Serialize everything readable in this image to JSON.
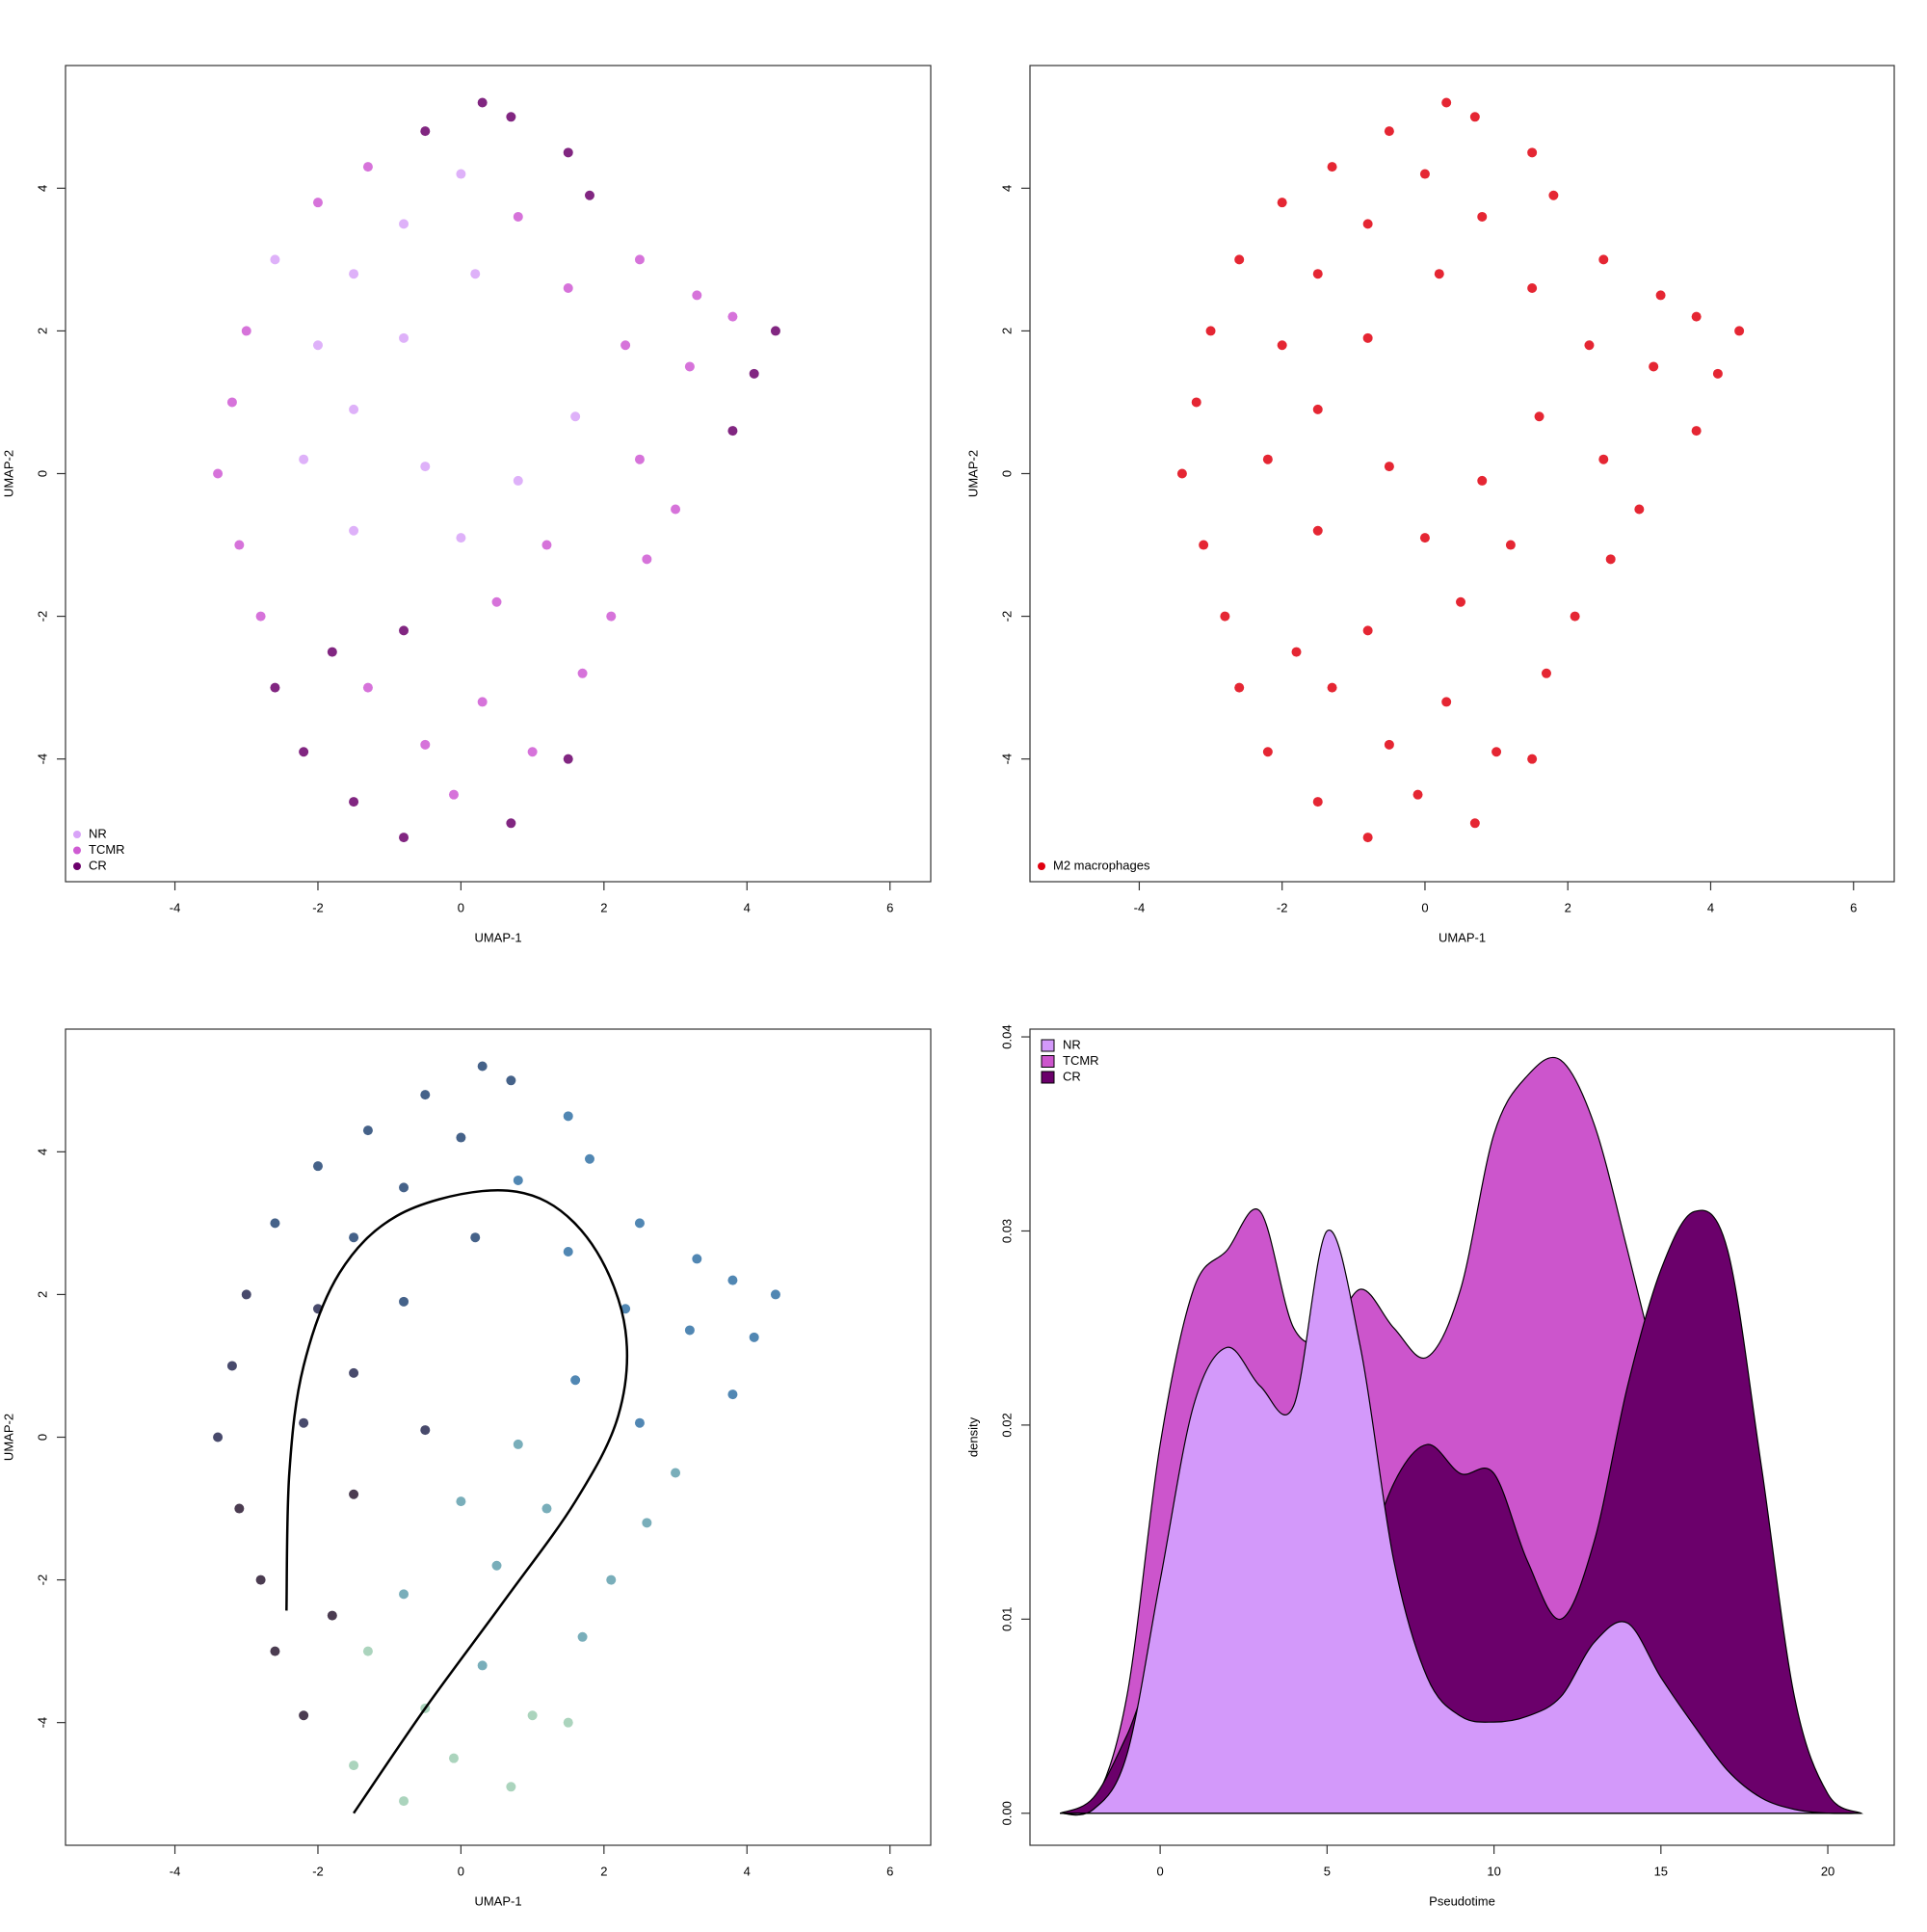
{
  "chart_data": [
    {
      "type": "scatter",
      "xlabel": "UMAP-1",
      "ylabel": "UMAP-2",
      "xlim": [
        -5.53,
        6.57
      ],
      "ylim": [
        -5.72,
        5.72
      ],
      "xticks": [
        -4,
        -2,
        0,
        2,
        4,
        6
      ],
      "yticks": [
        -4,
        -2,
        0,
        2,
        4
      ],
      "legend": "bottomleft",
      "series": [
        {
          "name": "NR",
          "color": "#d8a3f8",
          "x": [
            -1.5,
            -0.8,
            -0.5,
            -1.5,
            -2.0,
            0.0,
            -0.8,
            0.2,
            -2.2,
            -1.5,
            0.0,
            -2.6,
            0.8,
            1.6
          ],
          "y": [
            2.8,
            1.9,
            0.1,
            0.9,
            1.8,
            4.2,
            3.5,
            2.8,
            0.2,
            -0.8,
            -0.9,
            3.0,
            -0.1,
            0.8
          ]
        },
        {
          "name": "TCMR",
          "color": "#cf5bd3",
          "x": [
            -3.4,
            -3.2,
            -3.0,
            -2.0,
            -1.3,
            0.8,
            1.5,
            2.3,
            3.2,
            3.3,
            2.5,
            3.0,
            1.2,
            2.6,
            -3.1,
            -2.8,
            0.5,
            2.1,
            -1.3,
            0.3,
            1.7,
            -0.5,
            1.0,
            -0.1,
            2.5,
            3.8
          ],
          "y": [
            0.0,
            1.0,
            2.0,
            3.8,
            4.3,
            3.6,
            2.6,
            1.8,
            1.5,
            2.5,
            0.2,
            -0.5,
            -1.0,
            -1.2,
            -1.0,
            -2.0,
            -1.8,
            -2.0,
            -3.0,
            -3.2,
            -2.8,
            -3.8,
            -3.9,
            -4.5,
            3.0,
            2.2
          ]
        },
        {
          "name": "CR",
          "color": "#6b006b",
          "x": [
            0.3,
            0.7,
            -0.5,
            1.5,
            1.8,
            4.4,
            4.1,
            3.8,
            -0.8,
            -1.8,
            -2.6,
            -2.2,
            1.5,
            -1.5,
            -0.8,
            0.7
          ],
          "y": [
            5.2,
            5.0,
            4.8,
            4.5,
            3.9,
            2.0,
            1.4,
            0.6,
            -2.2,
            -2.5,
            -3.0,
            -3.9,
            -4.0,
            -4.6,
            -5.1,
            -4.9
          ]
        }
      ]
    },
    {
      "type": "scatter",
      "xlabel": "UMAP-1",
      "ylabel": "UMAP-2",
      "xlim": [
        -5.53,
        6.57
      ],
      "ylim": [
        -5.72,
        5.72
      ],
      "xticks": [
        -4,
        -2,
        0,
        2,
        4,
        6
      ],
      "yticks": [
        -4,
        -2,
        0,
        2,
        4
      ],
      "legend": "bottomleft",
      "series": [
        {
          "name": "M2 macrophages",
          "color": "#e0000f",
          "x": [
            0.3,
            0.7,
            -0.5,
            1.5,
            -1.3,
            0.0,
            1.8,
            -2.0,
            -0.8,
            0.8,
            2.5,
            -2.6,
            -1.5,
            0.2,
            1.5,
            3.3,
            3.8,
            4.4,
            -3.0,
            -2.0,
            -0.8,
            2.3,
            3.2,
            4.1,
            -3.2,
            -1.5,
            1.6,
            3.8,
            -3.4,
            -2.2,
            -0.5,
            0.8,
            2.5,
            3.0,
            -3.1,
            -1.5,
            1.2,
            2.6,
            -2.8,
            -0.8,
            0.5,
            2.1,
            -2.6,
            -1.3,
            0.3,
            1.7,
            -2.2,
            -0.5,
            1.0,
            1.5,
            -1.5,
            -0.8,
            0.7,
            -0.1,
            -1.8,
            0.0
          ],
          "y": [
            5.2,
            5.0,
            4.8,
            4.5,
            4.3,
            4.2,
            3.9,
            3.8,
            3.5,
            3.6,
            3.0,
            3.0,
            2.8,
            2.8,
            2.6,
            2.5,
            2.2,
            2.0,
            2.0,
            1.8,
            1.9,
            1.8,
            1.5,
            1.4,
            1.0,
            0.9,
            0.8,
            0.6,
            0.0,
            0.2,
            0.1,
            -0.1,
            0.2,
            -0.5,
            -1.0,
            -0.8,
            -1.0,
            -1.2,
            -2.0,
            -2.2,
            -1.8,
            -2.0,
            -3.0,
            -3.0,
            -3.2,
            -2.8,
            -3.9,
            -3.8,
            -3.9,
            -4.0,
            -4.6,
            -5.1,
            -4.9,
            -4.5,
            -2.5,
            -0.9
          ]
        }
      ]
    },
    {
      "type": "scatter",
      "xlabel": "UMAP-1",
      "ylabel": "UMAP-2",
      "xlim": [
        -5.53,
        6.57
      ],
      "ylim": [
        -5.72,
        5.72
      ],
      "xticks": [
        -4,
        -2,
        0,
        2,
        4,
        6
      ],
      "yticks": [
        -4,
        -2,
        0,
        2,
        4
      ],
      "series": [
        {
          "color": "#2b1a33",
          "x": [
            -2.6,
            -2.8,
            -2.2,
            -1.8,
            -3.1,
            -1.5
          ],
          "y": [
            -3.0,
            -2.0,
            -3.9,
            -2.5,
            -1.0,
            -0.8
          ]
        },
        {
          "color": "#282a52",
          "x": [
            -3.4,
            -2.2,
            -3.2,
            -1.5,
            -3.0,
            -2.0,
            -0.5
          ],
          "y": [
            0.0,
            0.2,
            1.0,
            0.9,
            2.0,
            1.8,
            0.1
          ]
        },
        {
          "color": "#244674",
          "x": [
            -2.6,
            -1.5,
            -2.0,
            -0.8,
            -1.3,
            -0.5,
            0.0,
            0.3,
            0.7,
            0.2,
            -0.8
          ],
          "y": [
            3.0,
            2.8,
            3.8,
            3.5,
            4.3,
            4.8,
            4.2,
            5.2,
            5.0,
            2.8,
            1.9
          ]
        },
        {
          "color": "#3272a6",
          "x": [
            1.5,
            0.8,
            1.8,
            2.5,
            1.5,
            3.3,
            3.8,
            4.4,
            2.3,
            3.2,
            4.1,
            1.6,
            3.8,
            2.5
          ],
          "y": [
            4.5,
            3.6,
            3.9,
            3.0,
            2.6,
            2.5,
            2.2,
            2.0,
            1.8,
            1.5,
            1.4,
            0.8,
            0.6,
            0.2
          ]
        },
        {
          "color": "#62a0ae",
          "x": [
            0.8,
            3.0,
            1.2,
            2.6,
            -0.8,
            0.5,
            2.1,
            0.0,
            1.7,
            0.3
          ],
          "y": [
            -0.1,
            -0.5,
            -1.0,
            -1.2,
            -2.2,
            -1.8,
            -2.0,
            -0.9,
            -2.8,
            -3.2
          ]
        },
        {
          "color": "#9ccdb2",
          "x": [
            -1.3,
            -0.5,
            1.0,
            1.5,
            -1.5,
            -0.8,
            0.7,
            -0.1
          ],
          "y": [
            -3.0,
            -3.8,
            -3.9,
            -4.0,
            -4.6,
            -5.1,
            -4.9,
            -4.5
          ]
        }
      ],
      "curve": {
        "color": "#000000",
        "x": [
          -2.44,
          -2.4,
          -2.2,
          -1.7,
          -0.9,
          0.3,
          1.2,
          1.9,
          2.3,
          2.2,
          1.6,
          0.6,
          -0.5,
          -1.5
        ],
        "y": [
          -2.43,
          -0.5,
          1.0,
          2.3,
          3.1,
          3.45,
          3.3,
          2.6,
          1.5,
          0.3,
          -0.9,
          -2.3,
          -3.8,
          -5.27
        ]
      }
    },
    {
      "type": "area",
      "xlabel": "Pseudotime",
      "ylabel": "density",
      "xlim": [
        -3.9,
        21.99
      ],
      "ylim": [
        -0.00165,
        0.0404
      ],
      "xticks": [
        0,
        5,
        10,
        15,
        20
      ],
      "yticks": [
        {
          "value": 0,
          "label": "0.00"
        },
        0.01,
        0.02,
        0.03,
        0.04
      ],
      "legend": "topleft",
      "x": [
        -3,
        -2,
        -1,
        0,
        1,
        2,
        3,
        4,
        5,
        6,
        7,
        8,
        9,
        10,
        11,
        12,
        13,
        14,
        15,
        16,
        17,
        18,
        19,
        20,
        21
      ],
      "series": [
        {
          "name": "NR",
          "color": "#d399fa",
          "values": [
            0,
            0.0002,
            0.003,
            0.012,
            0.021,
            0.024,
            0.022,
            0.021,
            0.03,
            0.024,
            0.013,
            0.007,
            0.005,
            0.0047,
            0.005,
            0.006,
            0.0088,
            0.0098,
            0.007,
            0.0045,
            0.0022,
            0.0008,
            0.0002,
            0,
            0
          ]
        },
        {
          "name": "TCMR",
          "color": "#cc55cc",
          "values": [
            0,
            0.0005,
            0.006,
            0.019,
            0.027,
            0.029,
            0.031,
            0.025,
            0.0245,
            0.027,
            0.025,
            0.0235,
            0.027,
            0.035,
            0.038,
            0.0388,
            0.0355,
            0.029,
            0.022,
            0.015,
            0.009,
            0.004,
            0.0012,
            0.0003,
            0
          ]
        },
        {
          "name": "CR",
          "color": "#6b006b",
          "values": [
            0,
            0.0008,
            0.004,
            0.008,
            0.006,
            0.003,
            0.001,
            0.0005,
            0.006,
            0.012,
            0.017,
            0.019,
            0.0175,
            0.0175,
            0.013,
            0.01,
            0.014,
            0.022,
            0.028,
            0.031,
            0.029,
            0.018,
            0.006,
            0.001,
            0
          ]
        }
      ],
      "draw_order": [
        1,
        2,
        0
      ]
    }
  ]
}
